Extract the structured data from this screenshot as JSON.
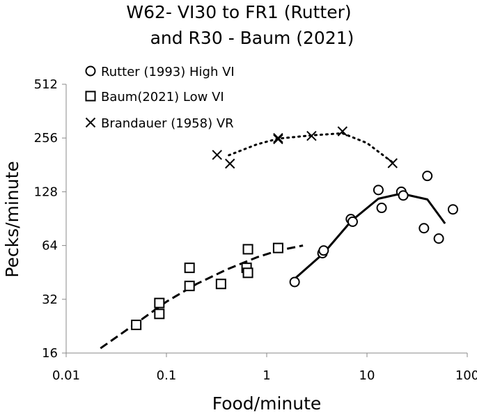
{
  "chart_data": {
    "type": "scatter",
    "title": [
      "W62- VI30 to FR1 (Rutter)",
      "and R30 - Baum (2021)"
    ],
    "xlabel": "Food/minute",
    "ylabel": "Pecks/minute",
    "xscale": "log",
    "yscale": "log2",
    "xlim": [
      0.01,
      100
    ],
    "ylim": [
      16,
      512
    ],
    "xticks": [
      0.01,
      0.1,
      1,
      10,
      100
    ],
    "xtick_labels": [
      "0.01",
      "0.1",
      "1",
      "10",
      "100"
    ],
    "yticks": [
      16,
      32,
      64,
      128,
      256,
      512
    ],
    "ytick_labels": [
      "16",
      "32",
      "64",
      "128",
      "256",
      "512"
    ],
    "grid": false,
    "legend_position": "top-left",
    "series": [
      {
        "name": "Rutter (1993) High VI",
        "marker": "circle",
        "points": [
          [
            1.9,
            40
          ],
          [
            3.6,
            58
          ],
          [
            3.7,
            60
          ],
          [
            6.9,
            90
          ],
          [
            7.2,
            87
          ],
          [
            13,
            131
          ],
          [
            14,
            104
          ],
          [
            22,
            128
          ],
          [
            23,
            122
          ],
          [
            37,
            80
          ],
          [
            40,
            157
          ],
          [
            52,
            70
          ],
          [
            72,
            102
          ]
        ],
        "fit_line": {
          "style": "solid",
          "points": [
            [
              1.75,
              40
            ],
            [
              3.7,
              58
            ],
            [
              7,
              88
            ],
            [
              13,
              117
            ],
            [
              22,
              125
            ],
            [
              40,
              116
            ],
            [
              60,
              85
            ]
          ]
        }
      },
      {
        "name": "Baum(2021) Low VI",
        "marker": "square",
        "points": [
          [
            0.05,
            23
          ],
          [
            0.085,
            30.5
          ],
          [
            0.085,
            26.5
          ],
          [
            0.17,
            38
          ],
          [
            0.17,
            48
          ],
          [
            0.35,
            39
          ],
          [
            0.63,
            48
          ],
          [
            0.65,
            61
          ],
          [
            0.65,
            45
          ],
          [
            1.3,
            62
          ]
        ],
        "fit_line": {
          "style": "dashed",
          "points": [
            [
              0.022,
              17
            ],
            [
              0.05,
              23.5
            ],
            [
              0.1,
              31
            ],
            [
              0.2,
              39
            ],
            [
              0.4,
              47
            ],
            [
              0.8,
              55
            ],
            [
              1.3,
              60
            ],
            [
              2.3,
              64
            ]
          ]
        }
      },
      {
        "name": "Brandauer (1958) VR",
        "marker": "x",
        "points": [
          [
            0.32,
            206
          ],
          [
            0.43,
            184
          ],
          [
            1.3,
            256
          ],
          [
            1.3,
            252
          ],
          [
            2.8,
            263
          ],
          [
            5.7,
            279
          ],
          [
            18,
            185
          ]
        ],
        "fit_line": {
          "style": "dotted",
          "points": [
            [
              0.42,
              205
            ],
            [
              0.8,
              236
            ],
            [
              1.3,
              254
            ],
            [
              2.8,
              265
            ],
            [
              5.7,
              272
            ],
            [
              10,
              240
            ],
            [
              18,
              187
            ]
          ]
        }
      }
    ]
  }
}
